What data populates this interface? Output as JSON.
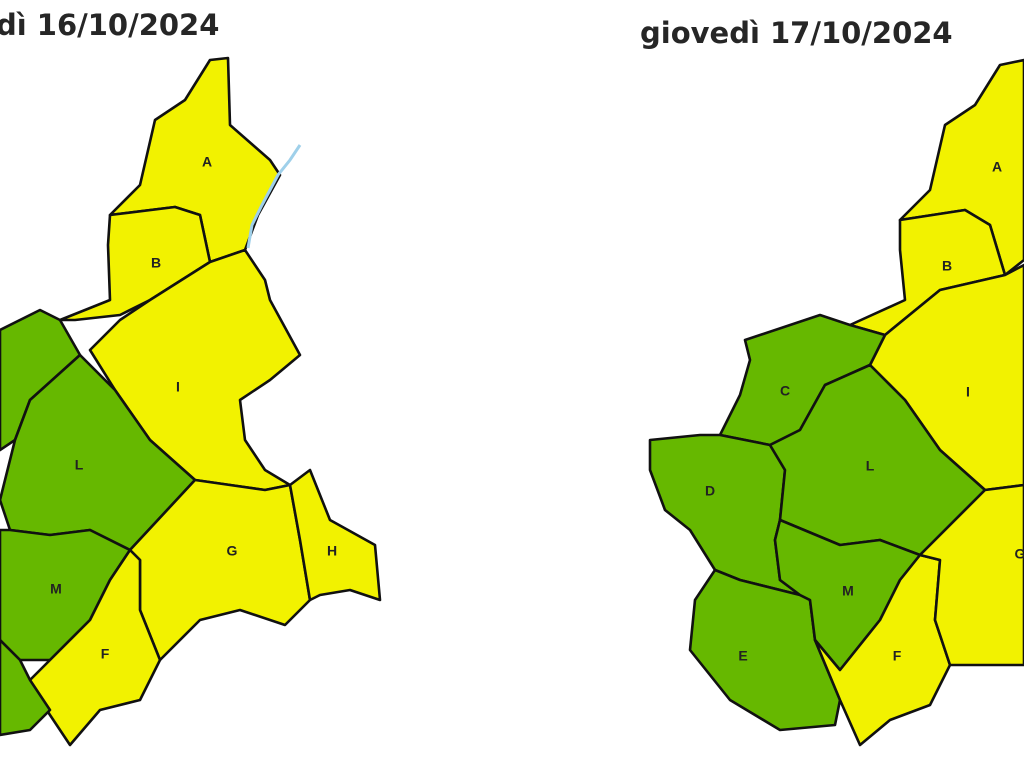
{
  "levels": {
    "yellow": "#f2f200",
    "green": "#66b800"
  },
  "maps": [
    {
      "date_title": "dì 16/10/2024",
      "zones": [
        {
          "id": "A",
          "label": "A",
          "level": "yellow"
        },
        {
          "id": "B",
          "label": "B",
          "level": "yellow"
        },
        {
          "id": "I",
          "label": "I",
          "level": "yellow"
        },
        {
          "id": "C",
          "label": "",
          "level": "green"
        },
        {
          "id": "L",
          "label": "L",
          "level": "green"
        },
        {
          "id": "G",
          "label": "G",
          "level": "yellow"
        },
        {
          "id": "H",
          "label": "H",
          "level": "yellow"
        },
        {
          "id": "M",
          "label": "M",
          "level": "green"
        },
        {
          "id": "F",
          "label": "F",
          "level": "yellow"
        },
        {
          "id": "E",
          "label": "",
          "level": "green"
        }
      ]
    },
    {
      "date_title": "giovedì 17/10/2024",
      "zones": [
        {
          "id": "A",
          "label": "A",
          "level": "yellow"
        },
        {
          "id": "B",
          "label": "B",
          "level": "yellow"
        },
        {
          "id": "I",
          "label": "I",
          "level": "yellow"
        },
        {
          "id": "C",
          "label": "C",
          "level": "green"
        },
        {
          "id": "D",
          "label": "D",
          "level": "green"
        },
        {
          "id": "E",
          "label": "E",
          "level": "green"
        },
        {
          "id": "L",
          "label": "L",
          "level": "green"
        },
        {
          "id": "M",
          "label": "M",
          "level": "green"
        },
        {
          "id": "F",
          "label": "F",
          "level": "yellow"
        },
        {
          "id": "G",
          "label": "G",
          "level": "yellow"
        }
      ]
    }
  ]
}
